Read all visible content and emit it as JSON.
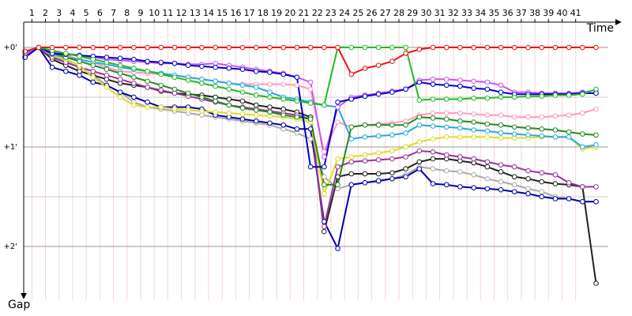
{
  "chart_data": {
    "type": "line",
    "x_label": "Time",
    "y_label": "Gap",
    "xlim": [
      0.4,
      43.4
    ],
    "ylim": [
      -0.254,
      2.54
    ],
    "y_inverted": true,
    "xticks": [
      1,
      2,
      3,
      4,
      5,
      6,
      7,
      8,
      9,
      10,
      11,
      12,
      13,
      14,
      15,
      16,
      17,
      18,
      19,
      20,
      21,
      22,
      23,
      24,
      25,
      26,
      27,
      28,
      29,
      30,
      31,
      32,
      33,
      34,
      35,
      36,
      37,
      38,
      39,
      40,
      41
    ],
    "yticks": [
      {
        "value": 0,
        "label": "+0'"
      },
      {
        "value": 1,
        "label": "+1'"
      },
      {
        "value": 2,
        "label": "+2'"
      }
    ],
    "minor_yticks": [
      0.5,
      1.5
    ],
    "grid": true,
    "x": [
      0.5,
      1.5,
      2.5,
      3.5,
      4.5,
      5.5,
      6.5,
      7.5,
      8.5,
      9.5,
      10.5,
      11.5,
      12.5,
      13.5,
      14.5,
      15.5,
      16.5,
      17.5,
      18.5,
      19.5,
      20.5,
      21.5,
      22.5,
      23.5,
      24.5,
      25.5,
      26.5,
      27.5,
      28.5,
      29.5,
      30.5,
      31.5,
      32.5,
      33.5,
      34.5,
      35.5,
      36.5,
      37.5,
      38.5,
      39.5,
      40.5,
      41.5,
      42.5
    ],
    "series": [
      {
        "color": "#aaaaaa",
        "values": [
          0.08,
          0,
          0.08,
          0.14,
          0.2,
          0.28,
          0.38,
          0.45,
          0.55,
          0.6,
          0.62,
          0.64,
          0.66,
          0.68,
          0.7,
          0.72,
          0.74,
          0.76,
          0.78,
          0.82,
          0.86,
          0.92,
          1.3,
          1.42,
          1.38,
          1.36,
          1.35,
          1.32,
          1.28,
          1.2,
          1.22,
          1.24,
          1.25,
          1.28,
          1.32,
          1.35,
          1.38,
          1.42,
          1.45,
          1.5,
          1.52,
          1.55,
          1.55
        ]
      },
      {
        "color": "#0000aa",
        "values": [
          0.1,
          0,
          0.2,
          0.24,
          0.28,
          0.35,
          0.38,
          0.45,
          0.5,
          0.55,
          0.6,
          0.6,
          0.6,
          0.62,
          0.68,
          0.7,
          0.72,
          0.74,
          0.76,
          0.78,
          0.82,
          0.82,
          1.75,
          2.02,
          1.38,
          1.36,
          1.34,
          1.32,
          1.3,
          1.22,
          1.37,
          1.38,
          1.4,
          1.41,
          1.42,
          1.43,
          1.45,
          1.47,
          1.5,
          1.52,
          1.52,
          1.55,
          1.55
        ]
      },
      {
        "color": "#222222",
        "values": [
          0.06,
          0,
          0.12,
          0.18,
          0.24,
          0.28,
          0.32,
          0.36,
          0.38,
          0.4,
          0.44,
          0.46,
          0.47,
          0.48,
          0.5,
          0.52,
          0.54,
          0.58,
          0.6,
          0.62,
          0.65,
          0.7,
          1.85,
          1.3,
          1.27,
          1.27,
          1.27,
          1.26,
          1.22,
          1.15,
          1.12,
          1.12,
          1.14,
          1.16,
          1.2,
          1.25,
          1.3,
          1.32,
          1.35,
          1.37,
          1.38,
          1.4,
          2.37
        ]
      },
      {
        "color": "#993399",
        "values": [
          0.05,
          0,
          0.1,
          0.15,
          0.2,
          0.24,
          0.28,
          0.32,
          0.36,
          0.4,
          0.43,
          0.46,
          0.49,
          0.52,
          0.55,
          0.58,
          0.6,
          0.62,
          0.64,
          0.66,
          0.68,
          0.72,
          1.8,
          1.2,
          1.15,
          1.14,
          1.13,
          1.12,
          1.1,
          1.04,
          1.05,
          1.08,
          1.1,
          1.12,
          1.15,
          1.18,
          1.2,
          1.24,
          1.26,
          1.28,
          1.36,
          1.4,
          1.4
        ]
      },
      {
        "color": "#dddd22",
        "values": [
          0.05,
          0,
          0.08,
          0.12,
          0.18,
          0.3,
          0.4,
          0.5,
          0.58,
          0.6,
          0.6,
          0.62,
          0.63,
          0.64,
          0.65,
          0.66,
          0.67,
          0.68,
          0.69,
          0.7,
          0.72,
          0.75,
          1.47,
          1.12,
          1.1,
          1.08,
          1.06,
          1.04,
          1.0,
          0.95,
          0.92,
          0.9,
          0.9,
          0.9,
          0.9,
          0.91,
          0.91,
          0.91,
          0.9,
          0.9,
          0.9,
          1.02,
          1.0
        ]
      },
      {
        "color": "#ff99bb",
        "values": [
          0.05,
          0,
          0.04,
          0.08,
          0.12,
          0.15,
          0.2,
          0.24,
          0.25,
          0.26,
          0.27,
          0.28,
          0.3,
          0.32,
          0.34,
          0.36,
          0.37,
          0.37,
          0.37,
          0.37,
          0.38,
          0.42,
          1.05,
          0.75,
          0.8,
          0.78,
          0.77,
          0.76,
          0.74,
          0.68,
          0.66,
          0.66,
          0.66,
          0.67,
          0.68,
          0.68,
          0.7,
          0.7,
          0.7,
          0.69,
          0.68,
          0.66,
          0.62
        ]
      },
      {
        "color": "#22aadd",
        "values": [
          0.07,
          0,
          0.07,
          0.1,
          0.12,
          0.15,
          0.17,
          0.2,
          0.22,
          0.24,
          0.26,
          0.28,
          0.3,
          0.32,
          0.34,
          0.36,
          0.38,
          0.4,
          0.45,
          0.5,
          0.52,
          0.55,
          0.58,
          0.6,
          0.92,
          0.9,
          0.89,
          0.88,
          0.86,
          0.78,
          0.79,
          0.8,
          0.81,
          0.83,
          0.84,
          0.86,
          0.87,
          0.88,
          0.89,
          0.9,
          0.9,
          1.0,
          0.98
        ]
      },
      {
        "color": "#228822",
        "values": [
          0.05,
          0,
          0.05,
          0.1,
          0.14,
          0.18,
          0.22,
          0.26,
          0.3,
          0.34,
          0.38,
          0.42,
          0.46,
          0.5,
          0.54,
          0.58,
          0.61,
          0.63,
          0.65,
          0.68,
          0.7,
          0.72,
          1.38,
          1.38,
          0.8,
          0.78,
          0.78,
          0.78,
          0.78,
          0.7,
          0.71,
          0.72,
          0.74,
          0.75,
          0.77,
          0.78,
          0.8,
          0.81,
          0.82,
          0.83,
          0.85,
          0.87,
          0.88
        ]
      },
      {
        "color": "#cc55ee",
        "values": [
          0.06,
          0,
          0.04,
          0.06,
          0.08,
          0.1,
          0.12,
          0.13,
          0.14,
          0.15,
          0.16,
          0.16,
          0.17,
          0.17,
          0.16,
          0.18,
          0.2,
          0.22,
          0.24,
          0.26,
          0.3,
          0.35,
          1.1,
          0.6,
          0.5,
          0.48,
          0.46,
          0.44,
          0.42,
          0.33,
          0.32,
          0.32,
          0.33,
          0.34,
          0.35,
          0.38,
          0.45,
          0.45,
          0.46,
          0.46,
          0.46,
          0.45,
          0.43
        ]
      },
      {
        "color": "#0000cc",
        "values": [
          0.1,
          0,
          0.06,
          0.07,
          0.08,
          0.09,
          0.1,
          0.11,
          0.12,
          0.14,
          0.15,
          0.16,
          0.18,
          0.19,
          0.2,
          0.21,
          0.22,
          0.24,
          0.25,
          0.27,
          0.3,
          1.2,
          1.2,
          0.55,
          0.52,
          0.49,
          0.47,
          0.45,
          0.42,
          0.35,
          0.37,
          0.38,
          0.39,
          0.41,
          0.42,
          0.45,
          0.47,
          0.47,
          0.47,
          0.47,
          0.47,
          0.46,
          0.46
        ]
      },
      {
        "color": "#22bb22",
        "values": [
          0.04,
          0,
          0.03,
          0.06,
          0.09,
          0.12,
          0.15,
          0.18,
          0.21,
          0.24,
          0.27,
          0.3,
          0.33,
          0.36,
          0.39,
          0.42,
          0.45,
          0.48,
          0.5,
          0.52,
          0.54,
          0.56,
          0.58,
          0,
          0,
          0,
          0,
          0,
          0,
          0.53,
          0.52,
          0.52,
          0.52,
          0.51,
          0.51,
          0.5,
          0.5,
          0.49,
          0.49,
          0.48,
          0.48,
          0.47,
          0.42
        ]
      },
      {
        "color": "#ee1111",
        "values": [
          0.04,
          0,
          0,
          0,
          0,
          0,
          0,
          0,
          0,
          0,
          0,
          0,
          0,
          0,
          0,
          0,
          0,
          0,
          0,
          0,
          0,
          0,
          0,
          0,
          0.27,
          0.21,
          0.18,
          0.14,
          0.06,
          0.02,
          0,
          0,
          0,
          0,
          0,
          0,
          0,
          0,
          0,
          0,
          0,
          0,
          0
        ]
      }
    ]
  }
}
